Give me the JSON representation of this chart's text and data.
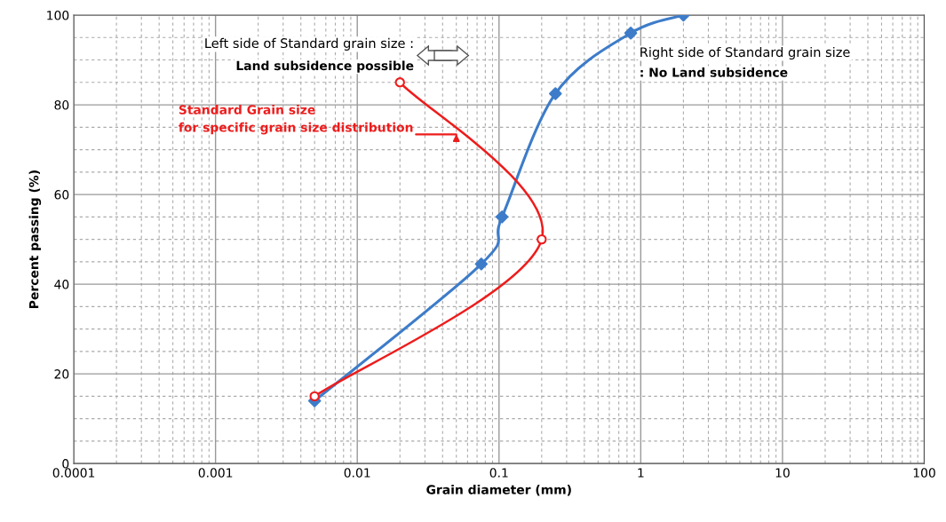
{
  "chart_data": {
    "type": "line",
    "xlabel": "Grain diameter (mm)",
    "ylabel": "Percent passing (%)",
    "log": "x",
    "xlim": [
      0.0001,
      100
    ],
    "xticks": [
      {
        "value": 0.0001,
        "label": "0.0001"
      },
      {
        "value": 0.001,
        "label": "0.001"
      },
      {
        "value": 0.01,
        "label": "0.01"
      },
      {
        "value": 0.1,
        "label": "0.1"
      },
      1,
      10,
      100
    ],
    "ylim": [
      0,
      100
    ],
    "yticks": [
      0,
      20,
      40,
      60,
      80,
      100
    ],
    "grid": true,
    "series": [
      {
        "color": "#3d7cc9",
        "marker": "diamond",
        "x": [
          0.005,
          0.075,
          0.105,
          0.25,
          0.85,
          2
        ],
        "values": [
          14,
          44.5,
          55,
          82.5,
          96,
          100
        ]
      },
      {
        "color": "#ee1c1c",
        "marker": "circle",
        "x": [
          0.005,
          0.2,
          0.02
        ],
        "values": [
          15,
          50,
          85
        ]
      }
    ],
    "annotations": [
      "Left side of Standard grain size :",
      "Land subsidence possible",
      "Right side of Standard grain size",
      ": No Land subsidence",
      {
        "text": "Standard Grain size\nfor specific grain size distribution",
        "x": 0.05,
        "y": 74
      }
    ]
  }
}
